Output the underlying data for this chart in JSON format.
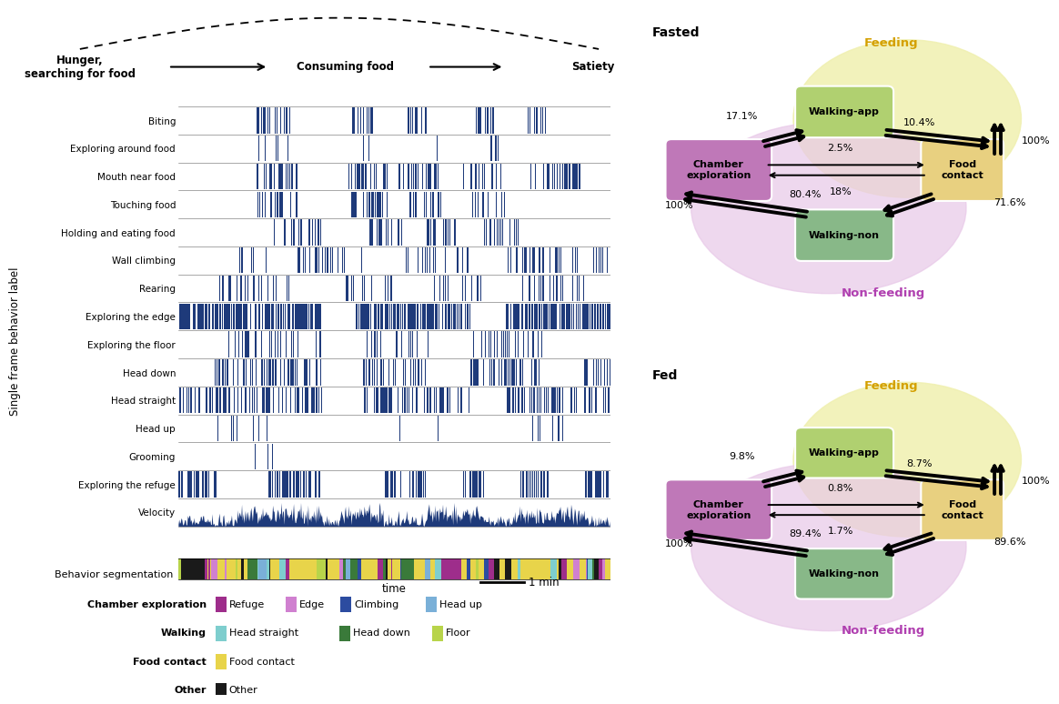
{
  "behaviors": [
    "Biting",
    "Exploring around food",
    "Mouth near food",
    "Touching food",
    "Holding and eating food",
    "Wall climbing",
    "Rearing",
    "Exploring the edge",
    "Exploring the floor",
    "Head down",
    "Head straight",
    "Head up",
    "Grooming",
    "Exploring the refuge",
    "Velocity"
  ],
  "raster_color": "#1e3a7a",
  "legend_rows": [
    {
      "category": "Chamber exploration",
      "items": [
        {
          "label": "Refuge",
          "color": "#9e2d8b"
        },
        {
          "label": "Edge",
          "color": "#d080d0"
        },
        {
          "label": "Climbing",
          "color": "#2c4ca0"
        },
        {
          "label": "Head up",
          "color": "#7ab0d8"
        }
      ]
    },
    {
      "category": "Walking",
      "items": [
        {
          "label": "Head straight",
          "color": "#7ecece"
        },
        {
          "label": "Head down",
          "color": "#3a7a3a"
        },
        {
          "label": "Floor",
          "color": "#b8d44a"
        }
      ]
    },
    {
      "category": "Food contact",
      "items": [
        {
          "label": "Food contact",
          "color": "#e8d44a"
        }
      ]
    },
    {
      "category": "Other",
      "items": [
        {
          "label": "Other",
          "color": "#1a1a1a"
        }
      ]
    }
  ],
  "seg_colors": [
    "#9e2d8b",
    "#d080d0",
    "#2c4ca0",
    "#7ab0d8",
    "#7ecece",
    "#3a7a3a",
    "#b8d44a",
    "#e8d44a",
    "#1a1a1a"
  ],
  "seg_weights": [
    0.1,
    0.06,
    0.05,
    0.03,
    0.1,
    0.07,
    0.05,
    0.45,
    0.09
  ],
  "fasted": {
    "CE_WA": "17.1%",
    "WA_FC": "10.4%",
    "CE_FC_fwd": "2.5%",
    "FC_CE_bwd": "18%",
    "FC_WN": "71.6%",
    "WN_CE": "100%",
    "CE_WN": "80.4%",
    "FC_WA": "100%"
  },
  "fed": {
    "CE_WA": "9.8%",
    "WA_FC": "8.7%",
    "CE_FC_fwd": "0.8%",
    "FC_CE_bwd": "1.7%",
    "FC_WN": "89.6%",
    "WN_CE": "100%",
    "CE_WN": "89.4%",
    "FC_WA": "100%"
  }
}
